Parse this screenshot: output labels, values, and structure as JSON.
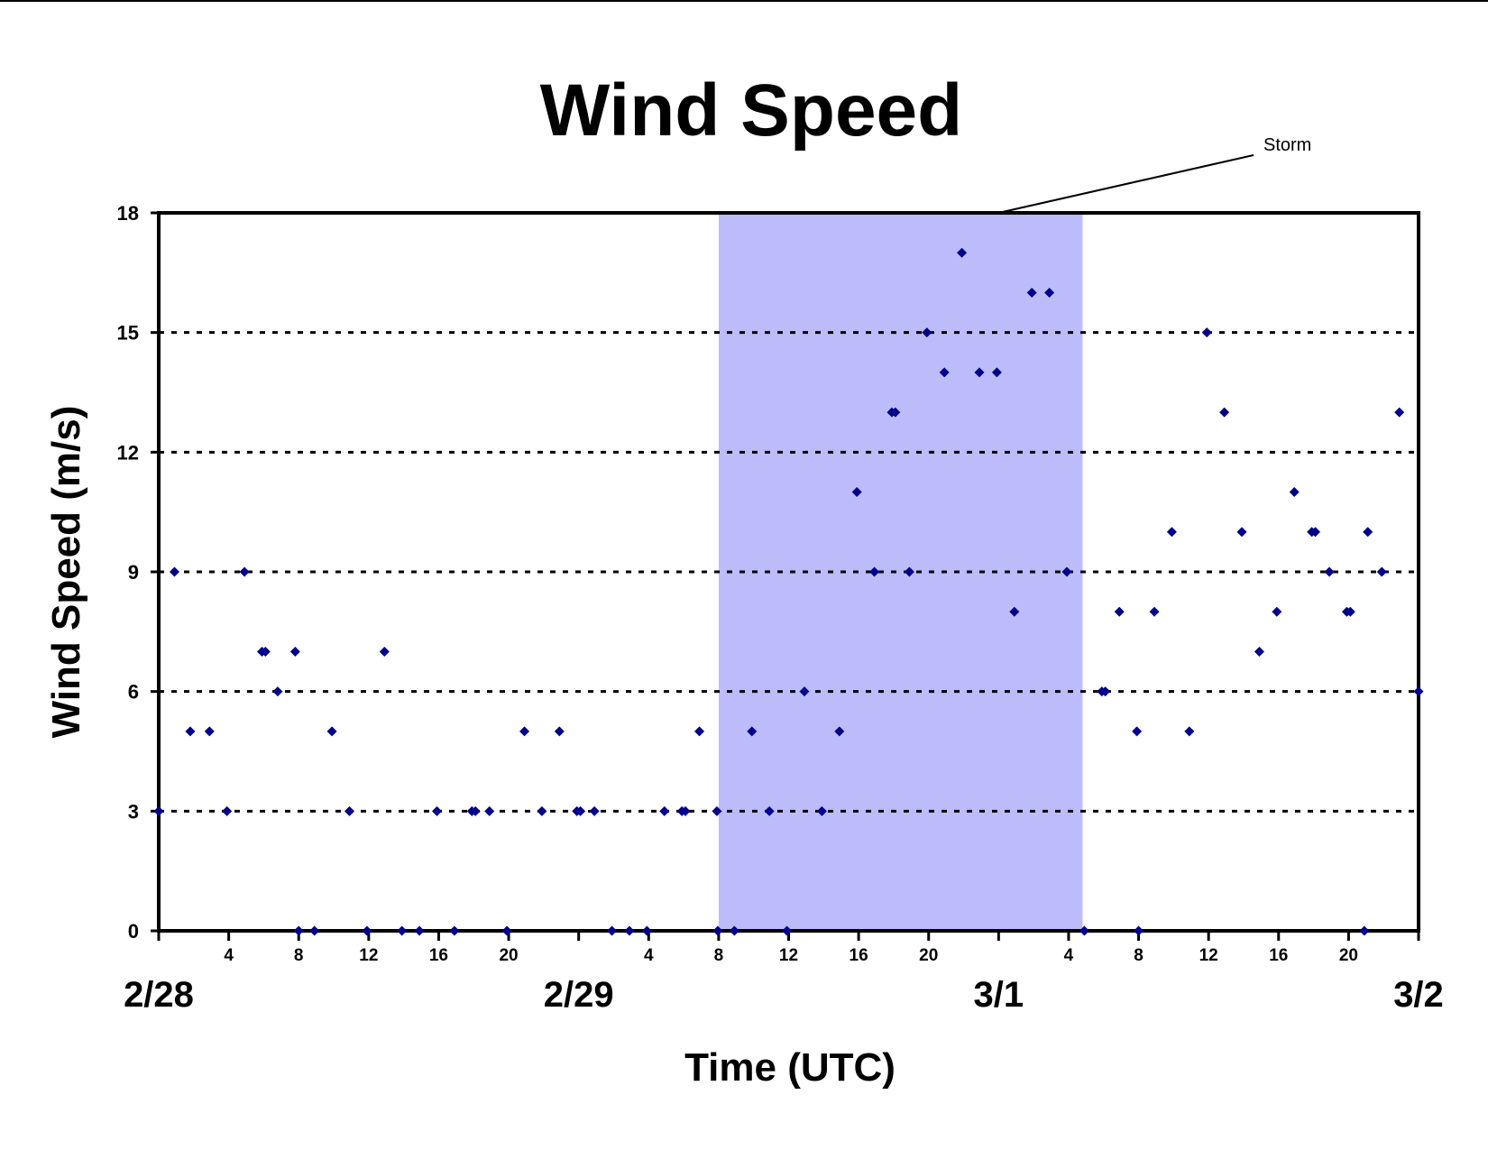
{
  "chart_data": {
    "type": "scatter",
    "title": "Wind Speed",
    "xlabel": "Time (UTC)",
    "ylabel": "Wind Speed (m/s)",
    "ylim": [
      0,
      18
    ],
    "yticks": [
      "0",
      "3",
      "6",
      "9",
      "12",
      "15",
      "18"
    ],
    "grid": "horizontal dotted",
    "x_units": "hours since 2/28 00 UTC",
    "xlim": [
      0,
      72
    ],
    "date_labels": [
      {
        "x": 0,
        "label": "2/28"
      },
      {
        "x": 24,
        "label": "2/29"
      },
      {
        "x": 48,
        "label": "3/1"
      },
      {
        "x": 72,
        "label": "3/2"
      }
    ],
    "hour_tick_labels": [
      {
        "x": 4,
        "label": "4"
      },
      {
        "x": 8,
        "label": "8"
      },
      {
        "x": 12,
        "label": "12"
      },
      {
        "x": 16,
        "label": "16"
      },
      {
        "x": 20,
        "label": "20"
      },
      {
        "x": 28,
        "label": "4"
      },
      {
        "x": 32,
        "label": "8"
      },
      {
        "x": 36,
        "label": "12"
      },
      {
        "x": 40,
        "label": "16"
      },
      {
        "x": 44,
        "label": "20"
      },
      {
        "x": 52,
        "label": "4"
      },
      {
        "x": 56,
        "label": "8"
      },
      {
        "x": 60,
        "label": "12"
      },
      {
        "x": 64,
        "label": "16"
      },
      {
        "x": 68,
        "label": "20"
      }
    ],
    "storm_span": [
      32,
      52.8
    ],
    "annotation": {
      "text": "Storm"
    },
    "series": [
      {
        "color": "#00008b",
        "points": [
          [
            0,
            3
          ],
          [
            0.9,
            9
          ],
          [
            1.8,
            5
          ],
          [
            2.9,
            5
          ],
          [
            3.9,
            3
          ],
          [
            4.9,
            9
          ],
          [
            5.9,
            7
          ],
          [
            6.1,
            7
          ],
          [
            6.8,
            6
          ],
          [
            7.8,
            7
          ],
          [
            8,
            0
          ],
          [
            8.9,
            0
          ],
          [
            9.9,
            5
          ],
          [
            10.9,
            3
          ],
          [
            11.9,
            0
          ],
          [
            12.9,
            7
          ],
          [
            13.9,
            0
          ],
          [
            14.9,
            0
          ],
          [
            15.9,
            3
          ],
          [
            16.9,
            0
          ],
          [
            17.9,
            3
          ],
          [
            18.1,
            3
          ],
          [
            18.9,
            3
          ],
          [
            19.9,
            0
          ],
          [
            20.9,
            5
          ],
          [
            21.9,
            3
          ],
          [
            22.9,
            5
          ],
          [
            23.9,
            3
          ],
          [
            24.1,
            3
          ],
          [
            24.9,
            3
          ],
          [
            25.9,
            0
          ],
          [
            26.9,
            0
          ],
          [
            27.9,
            0
          ],
          [
            28.9,
            3
          ],
          [
            29.9,
            3
          ],
          [
            30.1,
            3
          ],
          [
            30.9,
            5
          ],
          [
            31.9,
            3
          ],
          [
            31.95,
            0
          ],
          [
            32.9,
            0
          ],
          [
            33.9,
            5
          ],
          [
            34.9,
            3
          ],
          [
            35.9,
            0
          ],
          [
            36.9,
            6
          ],
          [
            37.9,
            3
          ],
          [
            38.9,
            5
          ],
          [
            39.9,
            11
          ],
          [
            40.9,
            9
          ],
          [
            41.9,
            13
          ],
          [
            42.1,
            13
          ],
          [
            42.9,
            9
          ],
          [
            43.9,
            15
          ],
          [
            44.9,
            14
          ],
          [
            45.9,
            17
          ],
          [
            46.9,
            14
          ],
          [
            47.9,
            14
          ],
          [
            48.9,
            8
          ],
          [
            49.9,
            16
          ],
          [
            50.9,
            16
          ],
          [
            51.9,
            9
          ],
          [
            52.9,
            0
          ],
          [
            53.9,
            6
          ],
          [
            54.1,
            6
          ],
          [
            54.9,
            8
          ],
          [
            55.9,
            5
          ],
          [
            56,
            0
          ],
          [
            56.9,
            8
          ],
          [
            57.9,
            10
          ],
          [
            58.9,
            5
          ],
          [
            59.9,
            15
          ],
          [
            60.9,
            13
          ],
          [
            61.9,
            10
          ],
          [
            62.9,
            7
          ],
          [
            63.9,
            8
          ],
          [
            64.9,
            11
          ],
          [
            65.9,
            10
          ],
          [
            66.1,
            10
          ],
          [
            66.9,
            9
          ],
          [
            67.9,
            8
          ],
          [
            68.1,
            8
          ],
          [
            68.9,
            0
          ],
          [
            69.1,
            10
          ],
          [
            69.9,
            9
          ],
          [
            70.9,
            13
          ],
          [
            72,
            6
          ]
        ]
      }
    ],
    "colors": {
      "storm_fill": "#bcbcfa",
      "marker": "#00008b",
      "axis": "#000000",
      "gridline": "#000000"
    }
  }
}
